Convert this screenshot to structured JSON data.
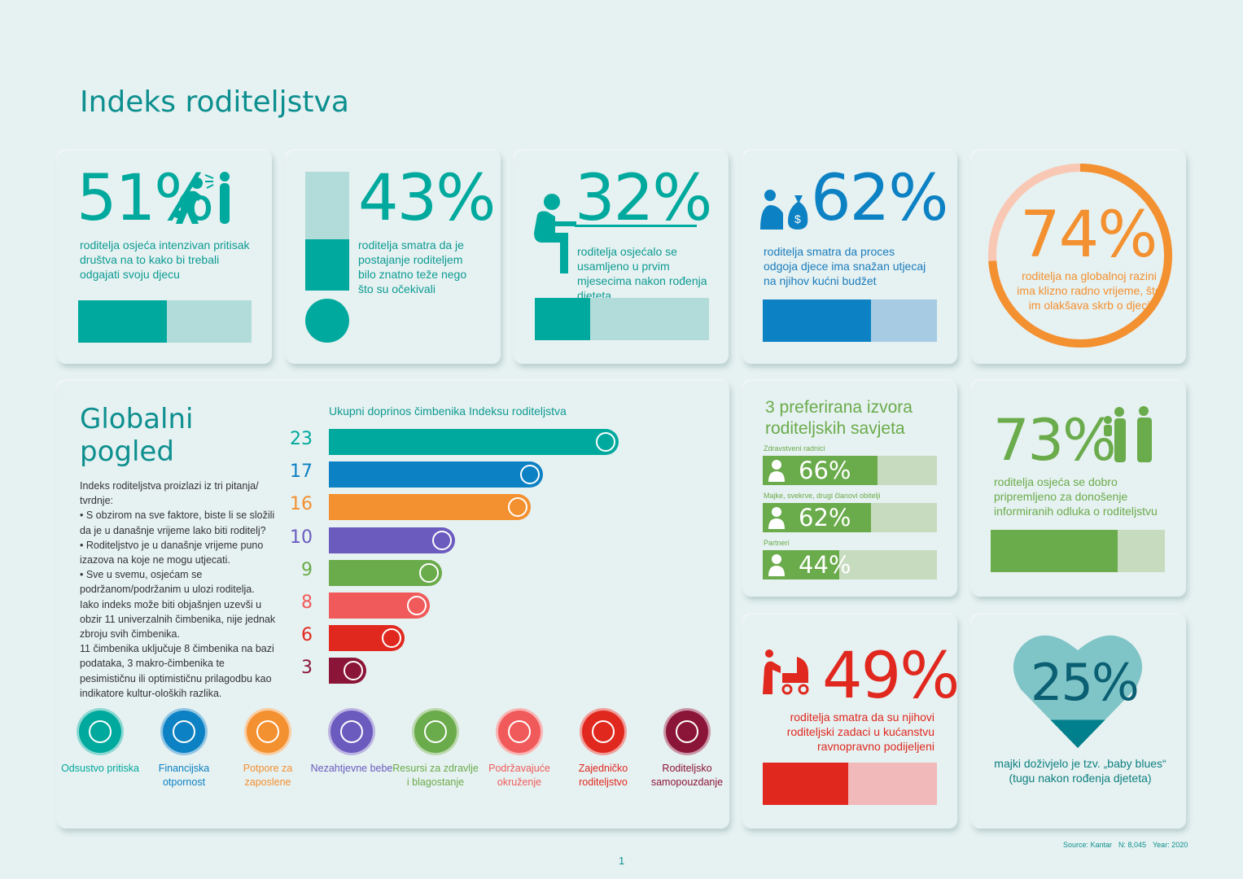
{
  "title": "Indeks roditeljstva",
  "colors": {
    "teal": "#00a99d",
    "teal_light": "#b2dcd9",
    "blue": "#0c81c3",
    "blue_light": "#a6cbe3",
    "orange": "#f39030",
    "orange_light": "#f9c8b4",
    "green": "#6aab4b",
    "green_light": "#c7dbbf",
    "red": "#e0281f",
    "red_light": "#f1b9b9"
  },
  "stats": [
    {
      "value": "51%",
      "text": "roditelja osjeća intenzivan pritisak društva na to kako bi trebali odgajati svoju djecu",
      "fraction": 0.51,
      "icon": "stressed-parent-icon"
    },
    {
      "value": "43%",
      "text": "roditelja smatra da je postajanje roditeljem bilo znatno teže nego što su očekivali",
      "fraction": 0.43,
      "icon": "exclamation-icon"
    },
    {
      "value": "32%",
      "text": "roditelja osjećalo se usamljeno u prvim mjesecima nakon rođenja djeteta",
      "fraction": 0.32,
      "icon": "lonely-person-icon"
    },
    {
      "value": "62%",
      "text": "roditelja smatra da proces odgoja djece ima snažan utjecaj na njihov kućni budžet",
      "fraction": 0.62,
      "icon": "money-bag-icon"
    },
    {
      "value": "74%",
      "text": "roditelja na globalnoj razini ima klizno radno vrijeme, što im olakšava skrb o djeci",
      "fraction": 0.74
    }
  ],
  "global": {
    "title_line1": "Globalni",
    "title_line2": "pogled",
    "chart_title": "Ukupni doprinos čimbenika Indeksu roditeljstva",
    "text_lines": [
      "Indeks roditeljstva proizlazi iz tri pitanja/ tvrdnje:",
      "• S obzirom na sve faktore, biste li se složili da je u današnje vrijeme lako biti roditelj?",
      "• Roditeljstvo je u današnje vrijeme puno izazova na koje ne mogu utjecati.",
      "• Sve u svemu, osjećam se podržanom/podržanim u ulozi roditelja.",
      "Iako indeks može biti objašnjen uzevši u obzir 11 univerzalnih čimbenika, nije jednak zbroju svih čimbenika.",
      "11 čimbenika uključuje 8 čimbenika na bazi podataka, 3 makro-čimbenika te pesimističnu ili optimističnu prilagodbu kao indikatore kultur-oloških razlika."
    ],
    "legend": [
      {
        "label": "Odsustvo pritiska",
        "color": "#00a99d"
      },
      {
        "label": "Financijska otpornost",
        "color": "#0c81c3"
      },
      {
        "label": "Potpore za zaposlene",
        "color": "#f39030"
      },
      {
        "label": "Nezahtjevne bebe",
        "color": "#6b5bbf"
      },
      {
        "label": "Resursi za zdravlje i blagostanje",
        "color": "#6aab4b"
      },
      {
        "label": "Podržavajuće okruženje",
        "color": "#f15a5a"
      },
      {
        "label": "Zajedničko roditeljstvo",
        "color": "#e0281f"
      },
      {
        "label": "Roditeljsko samopouzdanje",
        "color": "#8b1538"
      }
    ]
  },
  "chart_data": {
    "type": "bar",
    "orientation": "horizontal",
    "title": "Ukupni doprinos čimbenika Indeksu roditeljstva",
    "categories": [
      "Odsustvo pritiska",
      "Financijska otpornost",
      "Potpore za zaposlene",
      "Nezahtjevne bebe",
      "Resursi za zdravlje i blagostanje",
      "Podržavajuće okruženje",
      "Zajedničko roditeljstvo",
      "Roditeljsko samopouzdanje"
    ],
    "values": [
      23,
      17,
      16,
      10,
      9,
      8,
      6,
      3
    ],
    "colors": [
      "#00a99d",
      "#0c81c3",
      "#f39030",
      "#6b5bbf",
      "#6aab4b",
      "#f15a5a",
      "#e0281f",
      "#8b1538"
    ]
  },
  "advice": {
    "title_line1": "3 preferirana izvora",
    "title_line2": "roditeljskih savjeta",
    "items": [
      {
        "label": "Zdravstveni radnici",
        "value": "66%",
        "fraction": 0.66
      },
      {
        "label": "Majke, svekrve, drugi članovi obitelji",
        "value": "62%",
        "fraction": 0.62
      },
      {
        "label": "Partneri",
        "value": "44%",
        "fraction": 0.44
      }
    ]
  },
  "informed": {
    "value": "73%",
    "text": "roditelja osjeća se dobro pripremljeno za donošenje informiranih odluka o roditeljstvu",
    "fraction": 0.73
  },
  "shared": {
    "value": "49%",
    "text": "roditelja smatra da su njihovi roditeljski zadaci u kućanstvu ravnopravno podijeljeni",
    "fraction": 0.49
  },
  "babyblues": {
    "value": "25%",
    "line1": "majki doživjelo je tzv. „baby blues“",
    "line2": "(tugu nakon rođenja djeteta)",
    "fraction": 0.25
  },
  "source": {
    "source": "Source: Kantar",
    "n": "N: 8,045",
    "year": "Year: 2020"
  },
  "page_number": "1"
}
